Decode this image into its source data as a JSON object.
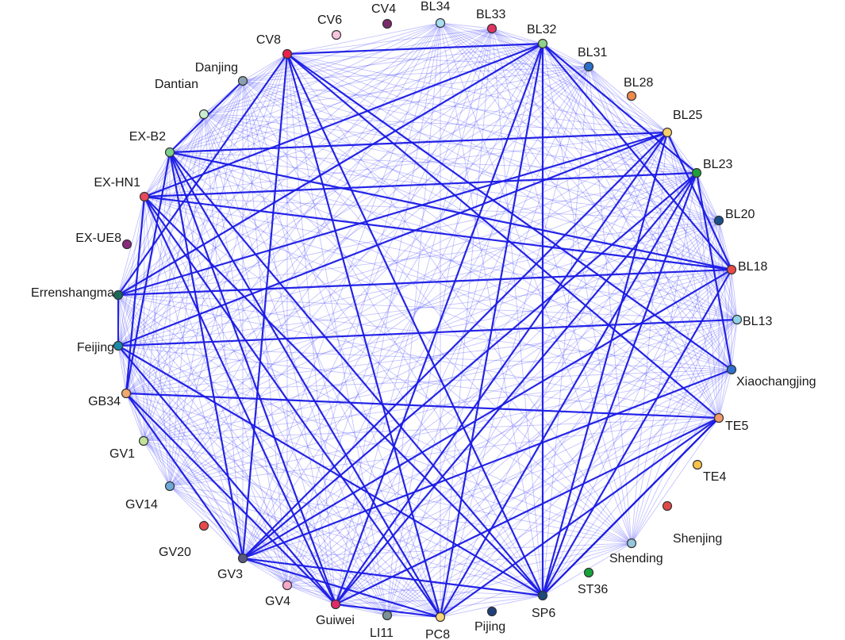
{
  "nodes": [
    {
      "id": "BL34",
      "label": "BL34",
      "color": "#a9dff0"
    },
    {
      "id": "BL33",
      "label": "BL33",
      "color": "#e03462"
    },
    {
      "id": "BL32",
      "label": "BL32",
      "color": "#8fd08a"
    },
    {
      "id": "BL31",
      "label": "BL31",
      "color": "#2a6fc9"
    },
    {
      "id": "BL28",
      "label": "BL28",
      "color": "#f08a4b"
    },
    {
      "id": "BL25",
      "label": "BL25",
      "color": "#f9cf6a"
    },
    {
      "id": "BL23",
      "label": "BL23",
      "color": "#1f9e3a"
    },
    {
      "id": "BL20",
      "label": "BL20",
      "color": "#1b4f8a"
    },
    {
      "id": "BL18",
      "label": "BL18",
      "color": "#e84a4a"
    },
    {
      "id": "BL13",
      "label": "BL13",
      "color": "#8fd3e8"
    },
    {
      "id": "Xiaochangjing",
      "label": "Xiaochangjing",
      "color": "#2f6fcf"
    },
    {
      "id": "TE5",
      "label": "TE5",
      "color": "#f29a6a"
    },
    {
      "id": "TE4",
      "label": "TE4",
      "color": "#f8c24a"
    },
    {
      "id": "Shenjing",
      "label": "Shenjing",
      "color": "#e04848"
    },
    {
      "id": "Shending",
      "label": "Shending",
      "color": "#96c6dc"
    },
    {
      "id": "ST36",
      "label": "ST36",
      "color": "#16a33a"
    },
    {
      "id": "SP6",
      "label": "SP6",
      "color": "#1c4a7a"
    },
    {
      "id": "Pijing",
      "label": "Pijing",
      "color": "#1e3f7a"
    },
    {
      "id": "PC8",
      "label": "PC8",
      "color": "#f9d57a"
    },
    {
      "id": "LI11",
      "label": "LI11",
      "color": "#7a9298"
    },
    {
      "id": "Guiwei",
      "label": "Guiwei",
      "color": "#e02a6a"
    },
    {
      "id": "GV4",
      "label": "GV4",
      "color": "#f5a8c8"
    },
    {
      "id": "GV3",
      "label": "GV3",
      "color": "#5a5a80"
    },
    {
      "id": "GV20",
      "label": "GV20",
      "color": "#e84a4a"
    },
    {
      "id": "GV14",
      "label": "GV14",
      "color": "#6fa8d8"
    },
    {
      "id": "GV1",
      "label": "GV1",
      "color": "#c2e39a"
    },
    {
      "id": "GB34",
      "label": "GB34",
      "color": "#f0a870"
    },
    {
      "id": "Feijing",
      "label": "Feijing",
      "color": "#1a8aa8"
    },
    {
      "id": "Errenshangma",
      "label": "Errenshangma",
      "color": "#1a6a5a"
    },
    {
      "id": "EX-UE8",
      "label": "EX-UE8",
      "color": "#8a2a7a"
    },
    {
      "id": "EX-HN1",
      "label": "EX-HN1",
      "color": "#e84a5a"
    },
    {
      "id": "EX-B2",
      "label": "EX-B2",
      "color": "#7cd08a"
    },
    {
      "id": "Dantian",
      "label": "Dantian",
      "color": "#c8ecd0"
    },
    {
      "id": "Danjing",
      "label": "Danjing",
      "color": "#8aa0b0"
    },
    {
      "id": "CV8",
      "label": "CV8",
      "color": "#e8224a"
    },
    {
      "id": "CV6",
      "label": "CV6",
      "color": "#f9c4e0"
    },
    {
      "id": "CV4",
      "label": "CV4",
      "color": "#7a2a6a"
    }
  ],
  "edges_strong": [
    [
      "CV8",
      "BL32"
    ],
    [
      "CV8",
      "GV3"
    ],
    [
      "CV8",
      "SP6"
    ],
    [
      "CV8",
      "PC8"
    ],
    [
      "CV8",
      "Xiaochangjing"
    ],
    [
      "CV8",
      "TE5"
    ],
    [
      "CV8",
      "Errenshangma"
    ],
    [
      "BL32",
      "SP6"
    ],
    [
      "BL32",
      "BL18"
    ],
    [
      "BL32",
      "Errenshangma"
    ],
    [
      "BL32",
      "BL23"
    ],
    [
      "BL32",
      "EX-HN1"
    ],
    [
      "BL32",
      "Guiwei"
    ],
    [
      "EX-B2",
      "BL25"
    ],
    [
      "EX-B2",
      "SP6"
    ],
    [
      "EX-B2",
      "PC8"
    ],
    [
      "EX-B2",
      "BL18"
    ],
    [
      "EX-B2",
      "GB34"
    ],
    [
      "EX-B2",
      "Guiwei"
    ],
    [
      "EX-B2",
      "GV3"
    ],
    [
      "EX-B2",
      "Danjing"
    ],
    [
      "EX-HN1",
      "BL23"
    ],
    [
      "EX-HN1",
      "BL18"
    ],
    [
      "EX-HN1",
      "PC8"
    ],
    [
      "EX-HN1",
      "SP6"
    ],
    [
      "EX-HN1",
      "Guiwei"
    ],
    [
      "EX-HN1",
      "GB34"
    ],
    [
      "Errenshangma",
      "BL18"
    ],
    [
      "Errenshangma",
      "Feijing"
    ],
    [
      "Errenshangma",
      "BL25"
    ],
    [
      "Feijing",
      "BL13"
    ],
    [
      "Feijing",
      "SP6"
    ],
    [
      "Feijing",
      "BL25"
    ],
    [
      "Feijing",
      "Guiwei"
    ],
    [
      "GB34",
      "TE5"
    ],
    [
      "GB34",
      "Guiwei"
    ],
    [
      "GB34",
      "GV3"
    ],
    [
      "GV3",
      "BL25"
    ],
    [
      "GV3",
      "BL18"
    ],
    [
      "GV3",
      "SP6"
    ],
    [
      "GV3",
      "Xiaochangjing"
    ],
    [
      "GV3",
      "BL23"
    ],
    [
      "GV3",
      "PC8"
    ],
    [
      "Guiwei",
      "BL25"
    ],
    [
      "Guiwei",
      "TE5"
    ],
    [
      "Guiwei",
      "PC8"
    ],
    [
      "Guiwei",
      "BL23"
    ],
    [
      "PC8",
      "BL23"
    ],
    [
      "PC8",
      "TE5"
    ],
    [
      "PC8",
      "BL32"
    ],
    [
      "SP6",
      "BL25"
    ],
    [
      "SP6",
      "BL23"
    ],
    [
      "SP6",
      "TE5"
    ],
    [
      "BL25",
      "BL18"
    ],
    [
      "BL23",
      "Xiaochangjing"
    ],
    [
      "BL18",
      "SP6"
    ],
    [
      "TE5",
      "SP6"
    ]
  ],
  "weak_nodes": [
    "CV8",
    "BL32",
    "BL25",
    "BL23",
    "BL18",
    "Xiaochangjing",
    "TE5",
    "Shending",
    "SP6",
    "PC8",
    "Guiwei",
    "GV3",
    "GB34",
    "Feijing",
    "Errenshangma",
    "EX-HN1",
    "EX-B2",
    "Dantian",
    "Danjing",
    "BL34",
    "BL33",
    "BL13",
    "GV1",
    "GV14",
    "LI11",
    "GV4",
    "BL31",
    "BL20"
  ]
}
